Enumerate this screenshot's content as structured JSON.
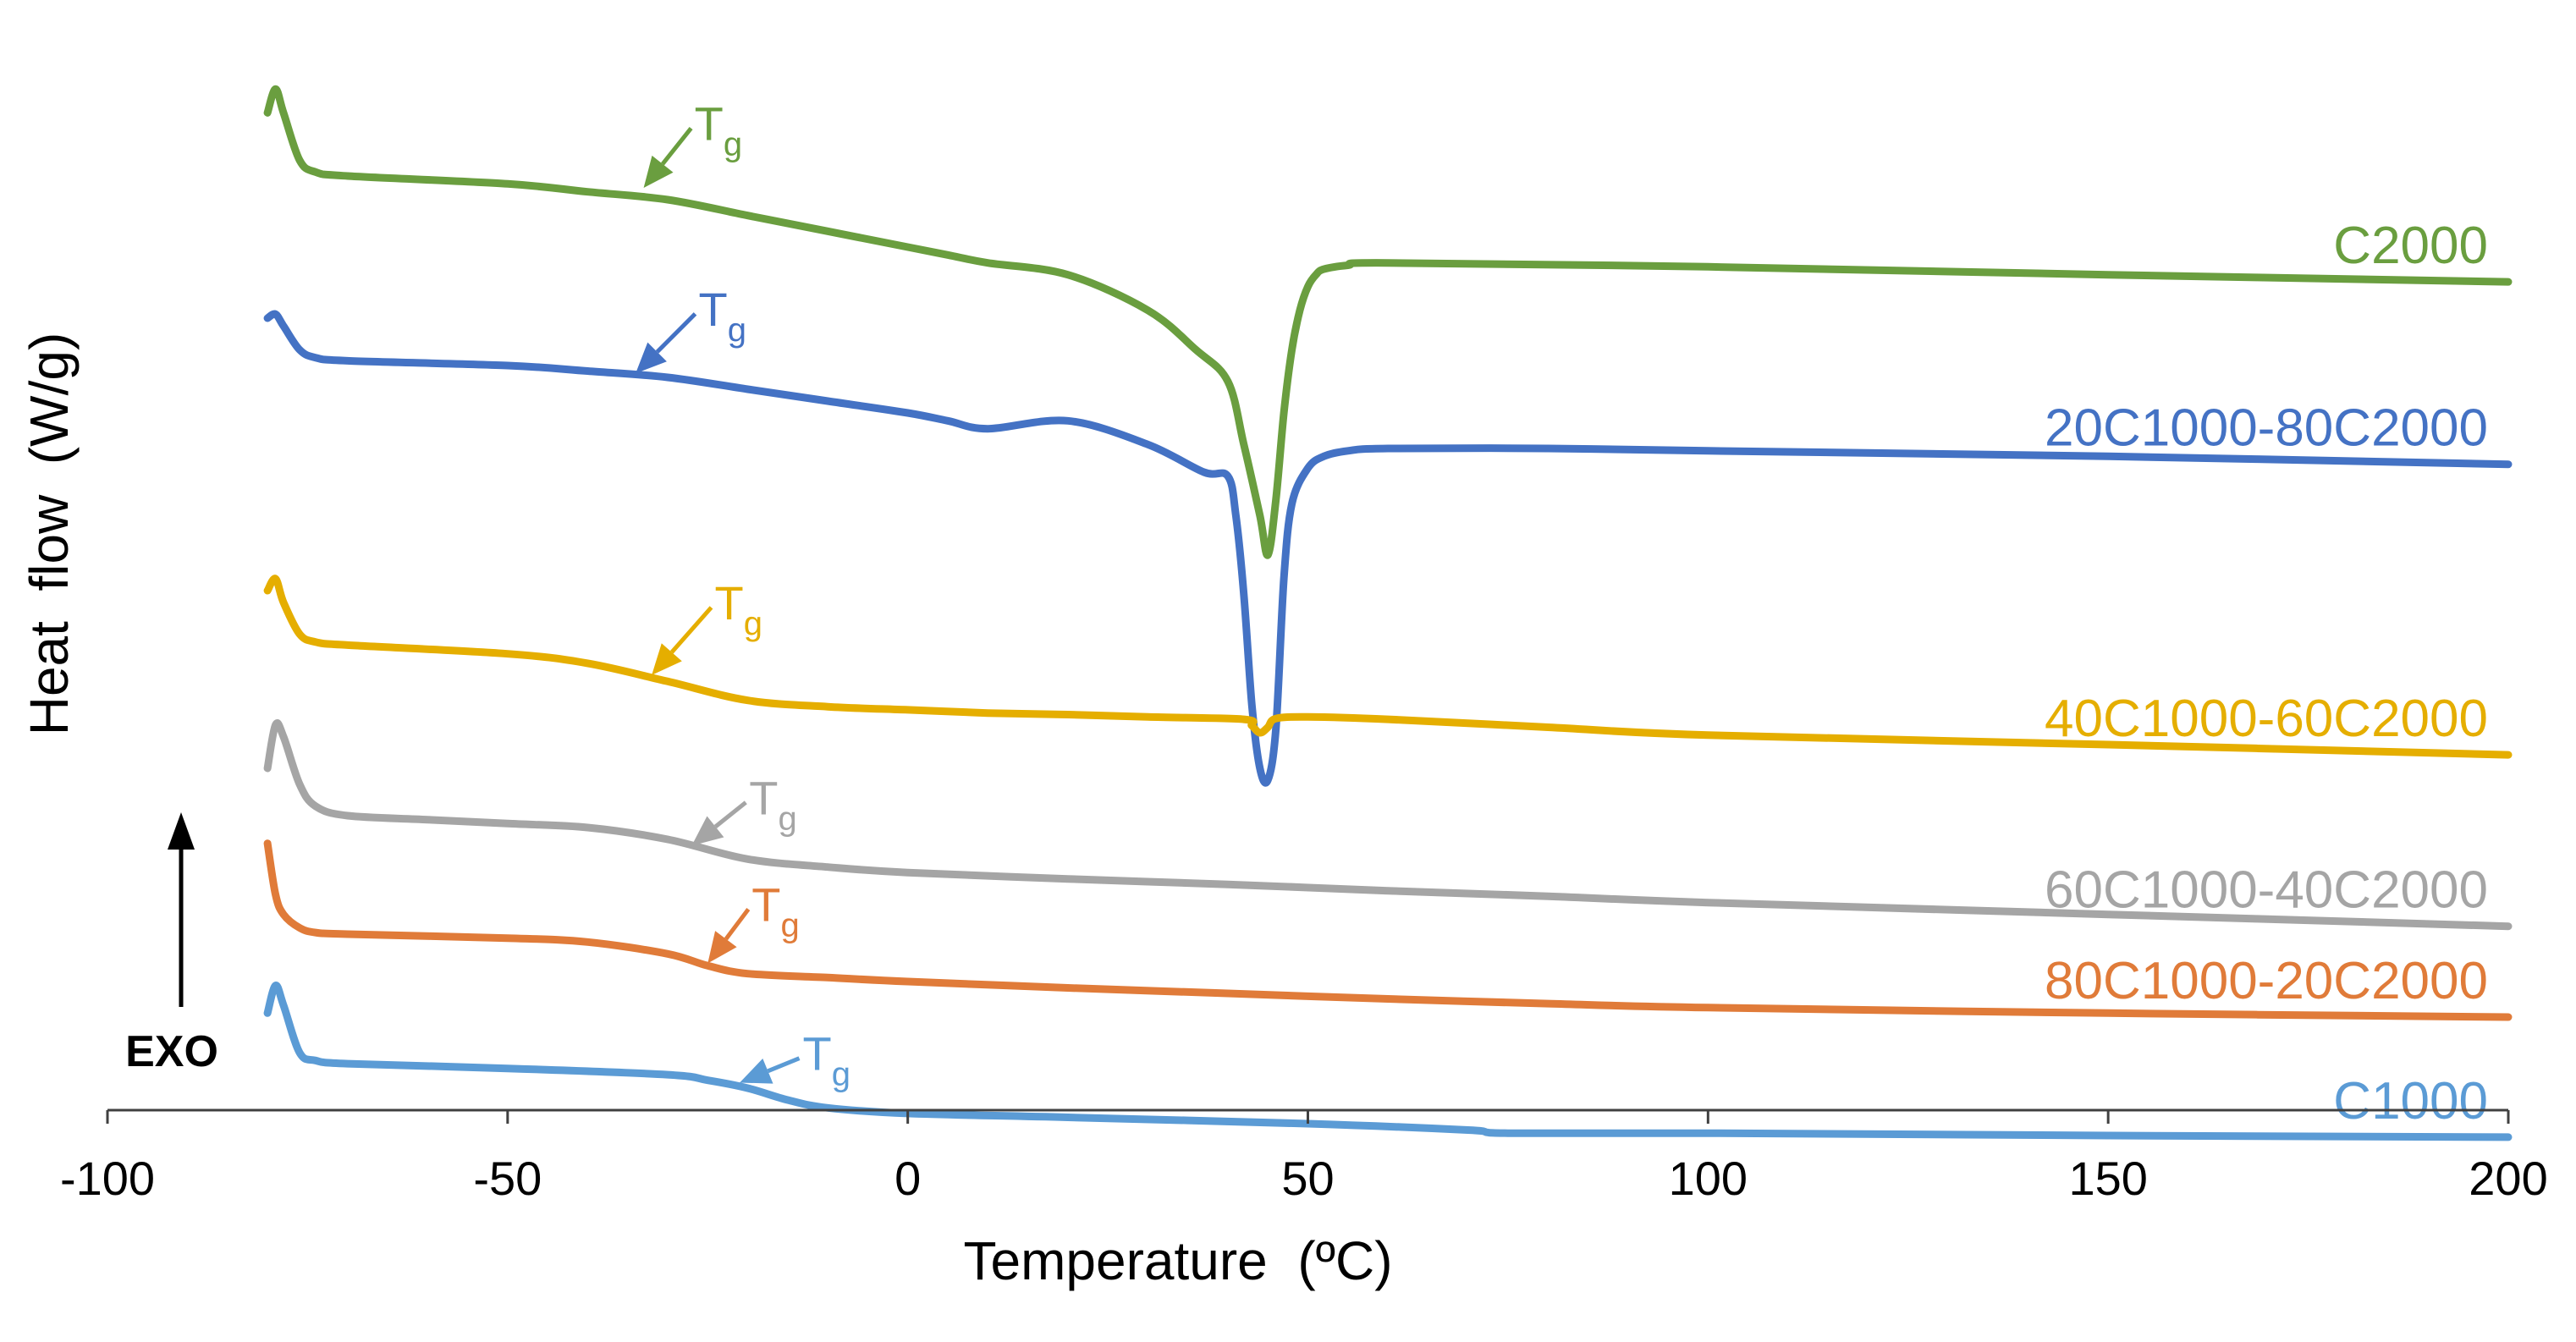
{
  "chart_data": {
    "type": "line",
    "title": "",
    "xlabel": "Temperature  (ºC)",
    "ylabel": "Heat  flow  (W/g)",
    "xlim": [
      -100,
      200
    ],
    "xticks": [
      -100,
      -50,
      0,
      50,
      100,
      150,
      200
    ],
    "ylim": [
      0,
      13.5
    ],
    "grid": false,
    "exo_label": "EXO",
    "tg_label": {
      "main": "T",
      "sub": "g"
    },
    "series": [
      {
        "name": "C2000",
        "color": "#6A9E3F",
        "x": [
          -80,
          -79,
          -78,
          -76,
          -74,
          -70,
          -50,
          -40,
          -30,
          -20,
          -10,
          0,
          5,
          10,
          20,
          30,
          36,
          40,
          42,
          44,
          45,
          46,
          47,
          48,
          49,
          50,
          51,
          52,
          55,
          60,
          100,
          150,
          200
        ],
        "y": [
          12.5,
          12.8,
          12.5,
          11.9,
          11.75,
          11.7,
          11.6,
          11.5,
          11.4,
          11.2,
          11.0,
          10.8,
          10.7,
          10.6,
          10.45,
          10.0,
          9.5,
          9.1,
          8.3,
          7.4,
          6.9,
          7.6,
          8.7,
          9.5,
          10.0,
          10.3,
          10.45,
          10.52,
          10.57,
          10.6,
          10.55,
          10.45,
          10.36
        ],
        "tg": {
          "x": -33,
          "y": 11.55,
          "dx": 35,
          "dy": -44
        }
      },
      {
        "name": "20C1000-80C2000",
        "color": "#4472C4",
        "x": [
          -80,
          -79,
          -78,
          -76,
          -74,
          -70,
          -50,
          -40,
          -30,
          -20,
          -10,
          0,
          5,
          10,
          20,
          30,
          37,
          40,
          41,
          42,
          43,
          44,
          45,
          46,
          47,
          48,
          50,
          52,
          55,
          60,
          80,
          100,
          150,
          200
        ],
        "y": [
          9.9,
          9.95,
          9.8,
          9.5,
          9.4,
          9.36,
          9.3,
          9.23,
          9.15,
          9.0,
          8.85,
          8.7,
          8.6,
          8.5,
          8.6,
          8.3,
          7.95,
          7.9,
          7.4,
          6.4,
          5.0,
          4.2,
          4.05,
          4.7,
          6.6,
          7.55,
          8.0,
          8.15,
          8.22,
          8.25,
          8.25,
          8.22,
          8.15,
          8.05
        ],
        "tg": {
          "x": -34,
          "y": 9.2,
          "dx": 44,
          "dy": -44
        }
      },
      {
        "name": "40C1000-60C2000",
        "color": "#E5AE00",
        "x": [
          -80,
          -79,
          -78,
          -76,
          -74,
          -70,
          -50,
          -40,
          -30,
          -20,
          -10,
          0,
          10,
          20,
          30,
          42,
          43,
          44,
          45,
          46,
          50,
          60,
          80,
          100,
          150,
          200
        ],
        "y": [
          6.45,
          6.6,
          6.3,
          5.9,
          5.8,
          5.76,
          5.65,
          5.53,
          5.3,
          5.06,
          4.98,
          4.94,
          4.9,
          4.88,
          4.85,
          4.82,
          4.74,
          4.65,
          4.72,
          4.83,
          4.85,
          4.82,
          4.72,
          4.62,
          4.5,
          4.37
        ],
        "tg": {
          "x": -32,
          "y": 5.38,
          "dx": 44,
          "dy": -50
        }
      },
      {
        "name": "60C1000-40C2000",
        "color": "#A5A5A5",
        "x": [
          -80,
          -79,
          -78,
          -76,
          -74,
          -70,
          -60,
          -50,
          -40,
          -30,
          -20,
          -10,
          0,
          20,
          40,
          60,
          80,
          100,
          150,
          200
        ],
        "y": [
          4.2,
          4.75,
          4.6,
          4.0,
          3.72,
          3.6,
          3.55,
          3.5,
          3.45,
          3.3,
          3.05,
          2.95,
          2.88,
          2.8,
          2.73,
          2.65,
          2.58,
          2.5,
          2.35,
          2.2
        ],
        "tg": {
          "x": -27,
          "y": 3.22,
          "dx": 40,
          "dy": -32
        }
      },
      {
        "name": "80C1000-20C2000",
        "color": "#E07B39",
        "x": [
          -80,
          -79,
          -78,
          -76,
          -74,
          -70,
          -50,
          -40,
          -30,
          -25,
          -20,
          -10,
          0,
          20,
          40,
          60,
          80,
          100,
          150,
          200
        ],
        "y": [
          3.25,
          2.6,
          2.35,
          2.18,
          2.12,
          2.1,
          2.05,
          2.0,
          1.85,
          1.7,
          1.6,
          1.55,
          1.5,
          1.42,
          1.35,
          1.28,
          1.22,
          1.17,
          1.1,
          1.05
        ],
        "tg": {
          "x": -25,
          "y": 1.73,
          "dx": 30,
          "dy": -40
        }
      },
      {
        "name": "C1000",
        "color": "#5B9BD5",
        "x": [
          -80,
          -79,
          -78,
          -76,
          -74,
          -70,
          -50,
          -30,
          -25,
          -20,
          -15,
          -10,
          0,
          20,
          50,
          70,
          75,
          100,
          150,
          200
        ],
        "y": [
          1.1,
          1.45,
          1.2,
          0.6,
          0.5,
          0.46,
          0.4,
          0.32,
          0.25,
          0.15,
          0.0,
          -0.1,
          -0.17,
          -0.22,
          -0.3,
          -0.38,
          -0.42,
          -0.42,
          -0.45,
          -0.47
        ],
        "tg": {
          "x": -21,
          "y": 0.22,
          "dx": 44,
          "dy": -18
        }
      }
    ]
  }
}
